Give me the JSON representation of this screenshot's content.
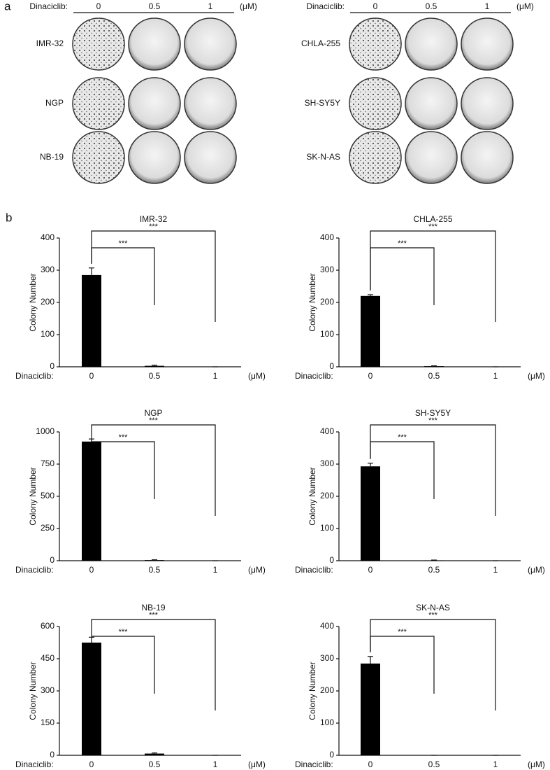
{
  "panel_a": {
    "label": "a",
    "groups": [
      {
        "header": "Dinaciclib:",
        "doses": [
          "0",
          "0.5",
          "1"
        ],
        "unit": "(μM)",
        "rows": [
          "IMR-32",
          "NGP",
          "NB-19"
        ]
      },
      {
        "header": "Dinaciclib:",
        "doses": [
          "0",
          "0.5",
          "1"
        ],
        "unit": "(μM)",
        "rows": [
          "CHLA-255",
          "SH-SY5Y",
          "SK-N-AS"
        ]
      }
    ]
  },
  "panel_b_label": "b",
  "chart_data": [
    {
      "type": "bar",
      "title": "IMR-32",
      "ylabel": "Colony Number",
      "xlabel": "Dinaciclib:",
      "xunit": "(μM)",
      "categories": [
        "0",
        "0.5",
        "1"
      ],
      "values": [
        285,
        3,
        0
      ],
      "errors": [
        22,
        2,
        0
      ],
      "color": "#000000",
      "ylim": [
        0,
        400
      ],
      "yticks": [
        0,
        100,
        200,
        300,
        400
      ],
      "significance": [
        "***",
        "***"
      ]
    },
    {
      "type": "bar",
      "title": "CHLA-255",
      "ylabel": "Colony Number",
      "xlabel": "Dinaciclib:",
      "xunit": "(μM)",
      "categories": [
        "0",
        "0.5",
        "1"
      ],
      "values": [
        220,
        2,
        0
      ],
      "errors": [
        4,
        1,
        0
      ],
      "color": "#000000",
      "ylim": [
        0,
        400
      ],
      "yticks": [
        0,
        100,
        200,
        300,
        400
      ],
      "significance": [
        "***",
        "***"
      ]
    },
    {
      "type": "bar",
      "title": "NGP",
      "ylabel": "Colony Number",
      "xlabel": "Dinaciclib:",
      "xunit": "(μM)",
      "categories": [
        "0",
        "0.5",
        "1"
      ],
      "values": [
        925,
        5,
        0
      ],
      "errors": [
        20,
        2,
        0
      ],
      "color": "#000000",
      "ylim": [
        0,
        1000
      ],
      "yticks": [
        0,
        250,
        500,
        750,
        1000
      ],
      "significance": [
        "***",
        "***"
      ]
    },
    {
      "type": "bar",
      "title": "SH-SY5Y",
      "ylabel": "Colony Number",
      "xlabel": "Dinaciclib:",
      "xunit": "(μM)",
      "categories": [
        "0",
        "0.5",
        "1"
      ],
      "values": [
        293,
        1,
        0
      ],
      "errors": [
        10,
        1,
        0
      ],
      "color": "#000000",
      "ylim": [
        0,
        400
      ],
      "yticks": [
        0,
        100,
        200,
        300,
        400
      ],
      "significance": [
        "***",
        "***"
      ]
    },
    {
      "type": "bar",
      "title": "NB-19",
      "ylabel": "Colony Number",
      "xlabel": "Dinaciclib:",
      "xunit": "(μM)",
      "categories": [
        "0",
        "0.5",
        "1"
      ],
      "values": [
        525,
        8,
        0
      ],
      "errors": [
        25,
        3,
        0
      ],
      "color": "#000000",
      "ylim": [
        0,
        600
      ],
      "yticks": [
        0,
        150,
        300,
        450,
        600
      ],
      "significance": [
        "***",
        "***"
      ]
    },
    {
      "type": "bar",
      "title": "SK-N-AS",
      "ylabel": "Colony Number",
      "xlabel": "Dinaciclib:",
      "xunit": "(μM)",
      "categories": [
        "0",
        "0.5",
        "1"
      ],
      "values": [
        285,
        0,
        0
      ],
      "errors": [
        22,
        0,
        0
      ],
      "color": "#000000",
      "ylim": [
        0,
        400
      ],
      "yticks": [
        0,
        100,
        200,
        300,
        400
      ],
      "significance": [
        "***",
        "***"
      ]
    }
  ]
}
